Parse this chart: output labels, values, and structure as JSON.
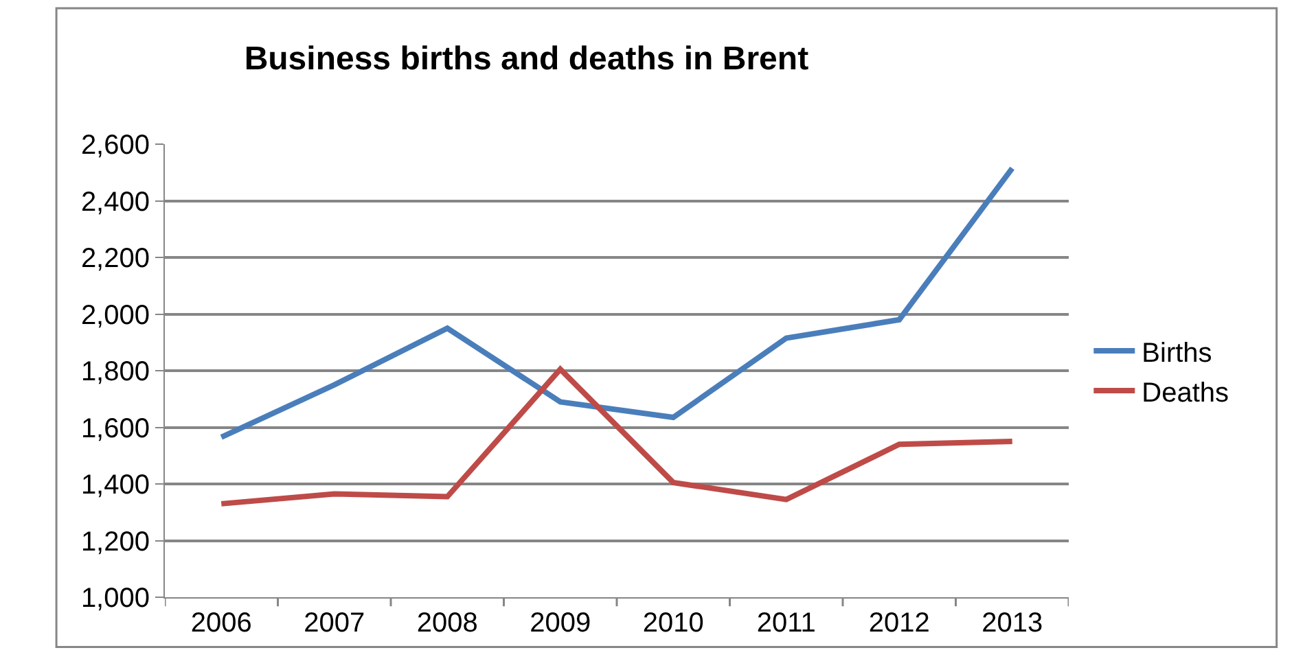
{
  "chart_data": {
    "type": "line",
    "title": "Business births and deaths in Brent",
    "categories": [
      "2006",
      "2007",
      "2008",
      "2009",
      "2010",
      "2011",
      "2012",
      "2013"
    ],
    "series": [
      {
        "name": "Births",
        "color": "#4a7ebb",
        "values": [
          1565,
          1750,
          1950,
          1690,
          1635,
          1915,
          1980,
          2515
        ]
      },
      {
        "name": "Deaths",
        "color": "#be4b48",
        "values": [
          1330,
          1365,
          1355,
          1805,
          1405,
          1345,
          1540,
          1550
        ]
      }
    ],
    "ylim": [
      1000,
      2600
    ],
    "yticks": [
      {
        "value": 1000,
        "label": "1,000"
      },
      {
        "value": 1200,
        "label": "1,200"
      },
      {
        "value": 1400,
        "label": "1,400"
      },
      {
        "value": 1600,
        "label": "1,600"
      },
      {
        "value": 1800,
        "label": "1,800"
      },
      {
        "value": 2000,
        "label": "2,000"
      },
      {
        "value": 2200,
        "label": "2,200"
      },
      {
        "value": 2400,
        "label": "2,400"
      },
      {
        "value": 2600,
        "label": "2,600"
      }
    ],
    "grid": "y",
    "legend": "right",
    "marker": "none",
    "line_style": "solid"
  }
}
